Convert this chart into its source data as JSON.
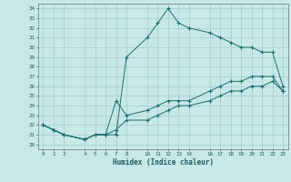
{
  "xlabel": "Humidex (Indice chaleur)",
  "bg_color": "#c8e8e8",
  "line_color": "#1a6e6a",
  "grid_color": "#a0cccc",
  "xlim": [
    -0.5,
    23.5
  ],
  "ylim": [
    19.5,
    34.5
  ],
  "xticks": [
    0,
    1,
    2,
    4,
    5,
    6,
    7,
    8,
    10,
    11,
    12,
    13,
    14,
    16,
    17,
    18,
    19,
    20,
    21,
    22,
    23
  ],
  "yticks": [
    20,
    21,
    22,
    23,
    24,
    25,
    26,
    27,
    28,
    29,
    30,
    31,
    32,
    33,
    34
  ],
  "line1_x": [
    0,
    1,
    2,
    4,
    5,
    6,
    7,
    8,
    10,
    11,
    12,
    13,
    14,
    16,
    17,
    18,
    19,
    20,
    21,
    22,
    23
  ],
  "line1_y": [
    22.0,
    21.5,
    21.0,
    20.5,
    21.0,
    21.0,
    21.0,
    29.0,
    31.0,
    32.5,
    34.0,
    32.5,
    32.0,
    31.5,
    31.0,
    30.5,
    30.0,
    30.0,
    29.5,
    29.5,
    26.0
  ],
  "line2_x": [
    0,
    1,
    2,
    4,
    5,
    6,
    7,
    8,
    10,
    11,
    12,
    13,
    14,
    16,
    17,
    18,
    19,
    20,
    21,
    22,
    23
  ],
  "line2_y": [
    22.0,
    21.5,
    21.0,
    20.5,
    21.0,
    21.0,
    24.5,
    23.0,
    23.5,
    24.0,
    24.5,
    24.5,
    24.5,
    25.5,
    26.0,
    26.5,
    26.5,
    27.0,
    27.0,
    27.0,
    25.5
  ],
  "line3_x": [
    0,
    1,
    2,
    4,
    5,
    6,
    7,
    8,
    10,
    11,
    12,
    13,
    14,
    16,
    17,
    18,
    19,
    20,
    21,
    22,
    23
  ],
  "line3_y": [
    22.0,
    21.5,
    21.0,
    20.5,
    21.0,
    21.0,
    21.5,
    22.5,
    22.5,
    23.0,
    23.5,
    24.0,
    24.0,
    24.5,
    25.0,
    25.5,
    25.5,
    26.0,
    26.0,
    26.5,
    25.5
  ]
}
